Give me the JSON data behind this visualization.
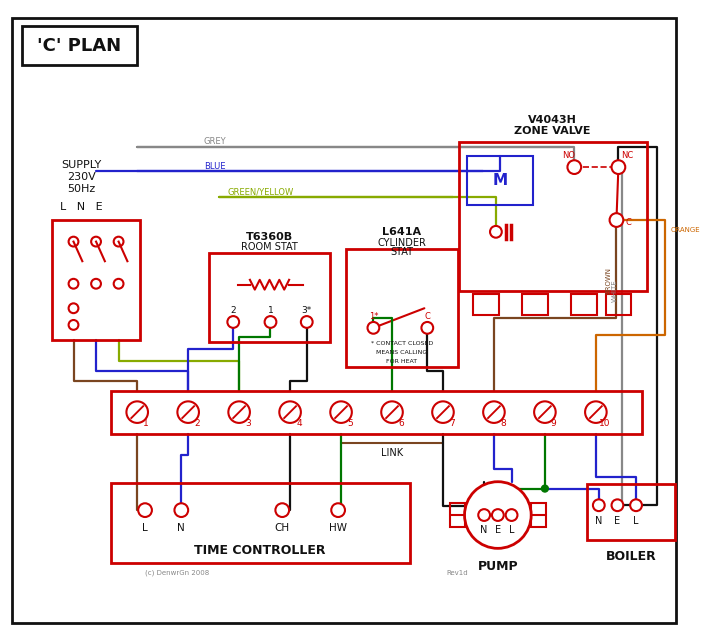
{
  "bg": "#ffffff",
  "black": "#111111",
  "red": "#cc0000",
  "blue": "#2222cc",
  "green": "#007700",
  "brown": "#7a4520",
  "grey": "#888888",
  "orange": "#cc6600",
  "gy": "#88aa00",
  "title": "'C' PLAN",
  "supply_text1": "SUPPLY",
  "supply_text2": "230V",
  "supply_text3": "50Hz",
  "zone_valve_line1": "V4043H",
  "zone_valve_line2": "ZONE VALVE",
  "room_stat_line1": "T6360B",
  "room_stat_line2": "ROOM STAT",
  "cyl_stat_line1": "L641A",
  "cyl_stat_line2": "CYLINDER",
  "cyl_stat_line3": "STAT",
  "time_ctrl": "TIME CONTROLLER",
  "pump": "PUMP",
  "boiler": "BOILER",
  "copyright": "(c) DenwrGn 2008",
  "rev": "Rev1d"
}
